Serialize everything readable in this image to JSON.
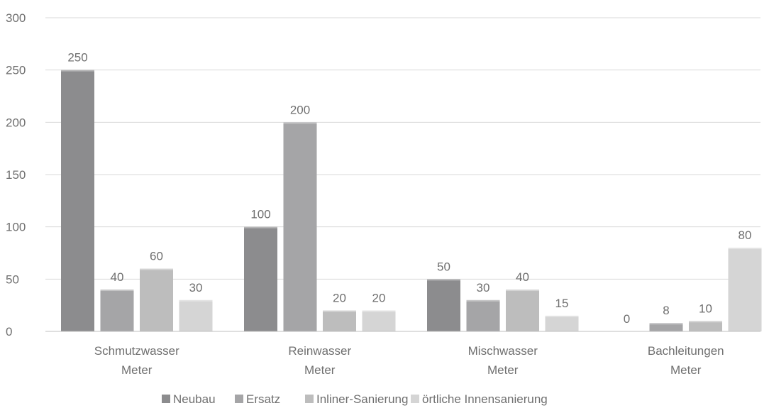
{
  "chart_data": {
    "type": "bar",
    "categories": [
      [
        "Schmutzwasser",
        "Meter"
      ],
      [
        "Reinwasser",
        "Meter"
      ],
      [
        "Mischwasser",
        "Meter"
      ],
      [
        "Bachleitungen",
        "Meter"
      ]
    ],
    "series": [
      {
        "name": "Neubau",
        "color": "#8c8c8e",
        "values": [
          250,
          100,
          50,
          0
        ]
      },
      {
        "name": "Ersatz",
        "color": "#a5a5a7",
        "values": [
          40,
          200,
          30,
          8
        ]
      },
      {
        "name": "Inliner-Sanierung",
        "color": "#bdbdbd",
        "values": [
          60,
          20,
          40,
          10
        ]
      },
      {
        "name": "örtliche Innensanierung",
        "color": "#d5d5d5",
        "values": [
          30,
          20,
          15,
          80
        ]
      }
    ],
    "ylim": [
      0,
      300
    ],
    "yticks": [
      0,
      50,
      100,
      150,
      200,
      250,
      300
    ],
    "grid": true,
    "legend_position": "bottom",
    "data_labels": true
  }
}
